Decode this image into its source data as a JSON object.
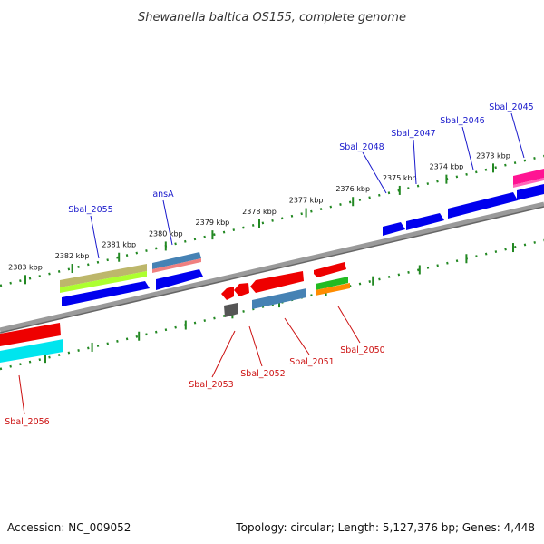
{
  "title": "Shewanella baltica OS155, complete genome",
  "footer": {
    "accession": "Accession: NC_009052",
    "topology": "Topology: circular; Length: 5,127,376 bp; Genes: 4,448"
  },
  "colors": {
    "backbone": "#888888",
    "ticks": "#228822",
    "forward_label": "#1a1acc",
    "reverse_label": "#cc1111"
  },
  "ticks": [
    {
      "label": "2383 kbp"
    },
    {
      "label": "2382 kbp"
    },
    {
      "label": "2381 kbp"
    },
    {
      "label": "2380 kbp"
    },
    {
      "label": "2379 kbp"
    },
    {
      "label": "2378 kbp"
    },
    {
      "label": "2377 kbp"
    },
    {
      "label": "2376 kbp"
    },
    {
      "label": "2375 kbp"
    },
    {
      "label": "2374 kbp"
    },
    {
      "label": "2373 kbp"
    }
  ],
  "gene_labels": {
    "forward": [
      "Sbal_2055",
      "ansA",
      "Sbal_2048",
      "Sbal_2047",
      "Sbal_2046",
      "Sbal_2045"
    ],
    "reverse": [
      "Sbal_2056",
      "Sbal_2053",
      "Sbal_2052",
      "Sbal_2051",
      "Sbal_2050"
    ]
  },
  "forward_genes": [
    {
      "name": "Sbal_2045",
      "colors": [
        "#ff1493",
        "#ff66bb"
      ]
    },
    {
      "name": "Sbal_2046",
      "colors": [
        "#0000ee",
        "#4444ff"
      ]
    },
    {
      "name": "Sbal_2047",
      "colors": [
        "#0000ee",
        "#4444ff"
      ]
    },
    {
      "name": "Sbal_2048",
      "colors": [
        "#0000ee",
        "#4444ff"
      ]
    },
    {
      "name": "ansA",
      "colors": [
        "#4682b4",
        "#f08080"
      ]
    },
    {
      "name": "Sbal_2055",
      "colors": [
        "#bdb76b",
        "#adff2f",
        "#0000ee"
      ]
    }
  ],
  "reverse_genes": [
    {
      "name": "Sbal_2050",
      "colors": [
        "#ee0000",
        "#22bb22",
        "#ff8c00"
      ]
    },
    {
      "name": "Sbal_2051",
      "colors": [
        "#ee0000",
        "#4682b4"
      ]
    },
    {
      "name": "Sbal_2052",
      "colors": [
        "#ee0000"
      ]
    },
    {
      "name": "Sbal_2053",
      "colors": [
        "#ee0000",
        "#555555"
      ]
    },
    {
      "name": "Sbal_2056",
      "colors": [
        "#ee0000",
        "#00e5ee"
      ]
    }
  ]
}
